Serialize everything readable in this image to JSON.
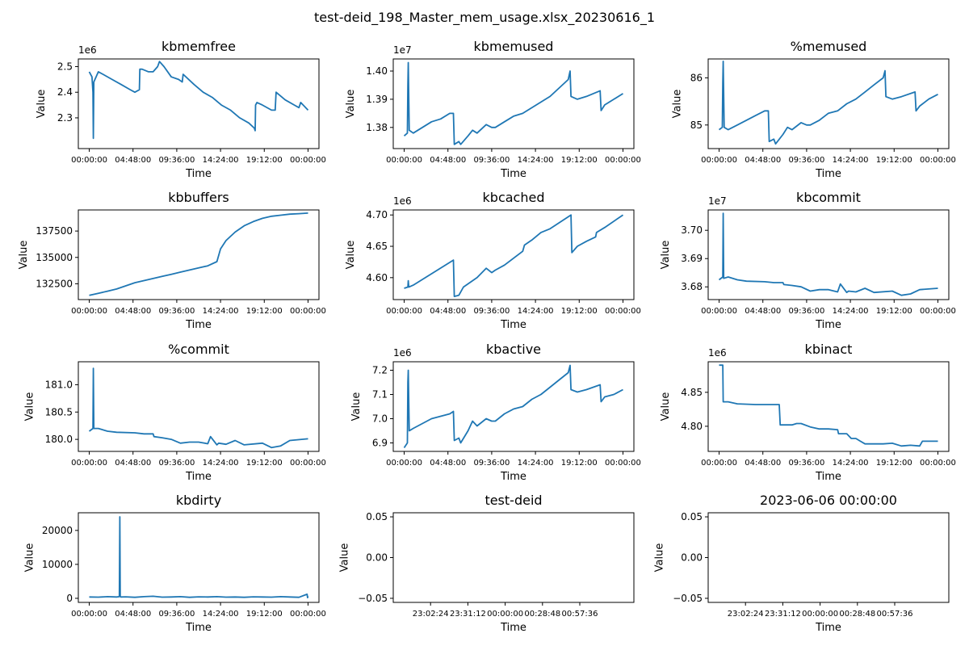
{
  "figure_title": "test-deid_198_Master_mem_usage.xlsx_20230616_1",
  "colors": {
    "line": "#1f77b4",
    "axis": "#000000",
    "background": "#ffffff"
  },
  "chart_data": [
    {
      "type": "line",
      "title": "kbmemfree",
      "xlabel": "Time",
      "ylabel": "Value",
      "offset_text": "1e6",
      "ylim": [
        2.18,
        2.53
      ],
      "yticks": [
        2.3,
        2.4,
        2.5
      ],
      "ytick_labels": [
        "2.3",
        "2.4",
        "2.5"
      ],
      "xticks": [
        0,
        4.8,
        9.6,
        14.4,
        19.2,
        24
      ],
      "xtick_labels": [
        "00:00:00",
        "04:48:00",
        "09:36:00",
        "14:24:00",
        "19:12:00",
        "00:00:00"
      ],
      "xlim": [
        -1.2,
        25.2
      ],
      "x": [
        0,
        0.3,
        0.4,
        0.45,
        0.5,
        1,
        1.5,
        2.5,
        3.5,
        4.5,
        5,
        5.5,
        5.55,
        5.8,
        6.5,
        7,
        7.5,
        7.7,
        8.2,
        9,
        9.8,
        10.2,
        10.3,
        11.5,
        12.5,
        13.5,
        14.5,
        15.5,
        16.5,
        17.5,
        18.1,
        18.2,
        18.25,
        18.4,
        19,
        20,
        20.4,
        20.5,
        21.5,
        22.5,
        23,
        23.2,
        24
      ],
      "y": [
        2.48,
        2.46,
        2.4,
        2.22,
        2.44,
        2.48,
        2.47,
        2.45,
        2.43,
        2.41,
        2.4,
        2.41,
        2.49,
        2.49,
        2.48,
        2.48,
        2.5,
        2.52,
        2.5,
        2.46,
        2.45,
        2.44,
        2.47,
        2.43,
        2.4,
        2.38,
        2.35,
        2.33,
        2.3,
        2.28,
        2.26,
        2.25,
        2.35,
        2.36,
        2.35,
        2.33,
        2.33,
        2.4,
        2.37,
        2.35,
        2.34,
        2.36,
        2.33
      ]
    },
    {
      "type": "line",
      "title": "kbmemused",
      "xlabel": "Time",
      "ylabel": "Value",
      "offset_text": "1e7",
      "ylim": [
        1.3725,
        1.4043
      ],
      "yticks": [
        1.38,
        1.39,
        1.4
      ],
      "ytick_labels": [
        "1.38",
        "1.39",
        "1.40"
      ],
      "xticks": [
        0,
        4.8,
        9.6,
        14.4,
        19.2,
        24
      ],
      "xtick_labels": [
        "00:00:00",
        "04:48:00",
        "09:36:00",
        "14:24:00",
        "19:12:00",
        "00:00:00"
      ],
      "xlim": [
        -1.2,
        25.2
      ],
      "x": [
        0,
        0.35,
        0.4,
        0.45,
        0.55,
        1,
        2,
        3,
        4,
        5,
        5.4,
        5.5,
        6,
        6.2,
        7,
        7.5,
        8,
        9,
        9.6,
        10,
        11,
        12,
        13,
        14,
        15,
        16,
        17,
        18,
        18.2,
        18.3,
        19,
        20,
        21.5,
        21.6,
        22,
        23,
        24
      ],
      "y": [
        1.377,
        1.378,
        1.395,
        1.403,
        1.379,
        1.378,
        1.38,
        1.382,
        1.383,
        1.385,
        1.385,
        1.374,
        1.375,
        1.374,
        1.377,
        1.379,
        1.378,
        1.381,
        1.38,
        1.38,
        1.382,
        1.384,
        1.385,
        1.387,
        1.389,
        1.391,
        1.394,
        1.397,
        1.4,
        1.391,
        1.39,
        1.391,
        1.393,
        1.386,
        1.388,
        1.39,
        1.392
      ]
    },
    {
      "type": "line",
      "title": "%memused",
      "xlabel": "Time",
      "ylabel": "Value",
      "offset_text": "",
      "ylim": [
        84.5,
        86.4
      ],
      "yticks": [
        85,
        86
      ],
      "ytick_labels": [
        "85",
        "86"
      ],
      "xticks": [
        0,
        4.8,
        9.6,
        14.4,
        19.2,
        24
      ],
      "xtick_labels": [
        "00:00:00",
        "04:48:00",
        "09:36:00",
        "14:24:00",
        "19:12:00",
        "00:00:00"
      ],
      "xlim": [
        -1.2,
        25.2
      ],
      "x": [
        0,
        0.35,
        0.4,
        0.45,
        0.55,
        1,
        2,
        3,
        4,
        5,
        5.4,
        5.5,
        6,
        6.2,
        7,
        7.5,
        8,
        9,
        9.6,
        10,
        11,
        12,
        13,
        14,
        15,
        16,
        17,
        18,
        18.2,
        18.3,
        19,
        20,
        21.5,
        21.6,
        22,
        23,
        24
      ],
      "y": [
        84.9,
        84.95,
        85.9,
        86.35,
        84.95,
        84.9,
        85.0,
        85.1,
        85.2,
        85.3,
        85.3,
        84.65,
        84.7,
        84.6,
        84.8,
        84.95,
        84.9,
        85.05,
        85.0,
        85.0,
        85.1,
        85.25,
        85.3,
        85.45,
        85.55,
        85.7,
        85.85,
        86.0,
        86.15,
        85.6,
        85.55,
        85.6,
        85.7,
        85.3,
        85.4,
        85.55,
        85.65
      ]
    },
    {
      "type": "line",
      "title": "kbbuffers",
      "xlabel": "Time",
      "ylabel": "Value",
      "offset_text": "",
      "ylim": [
        131000,
        139500
      ],
      "yticks": [
        132500,
        135000,
        137500
      ],
      "ytick_labels": [
        "132500",
        "135000",
        "137500"
      ],
      "xticks": [
        0,
        4.8,
        9.6,
        14.4,
        19.2,
        24
      ],
      "xtick_labels": [
        "00:00:00",
        "04:48:00",
        "09:36:00",
        "14:24:00",
        "19:12:00",
        "00:00:00"
      ],
      "xlim": [
        -1.2,
        25.2
      ],
      "x": [
        0,
        1,
        2,
        3,
        4,
        5,
        6,
        7,
        8,
        9,
        10,
        11,
        12,
        13,
        14,
        14.4,
        15,
        16,
        17,
        18,
        19,
        20,
        21,
        22,
        23,
        24
      ],
      "y": [
        131400,
        131600,
        131800,
        132000,
        132300,
        132600,
        132800,
        133000,
        133200,
        133400,
        133600,
        133800,
        134000,
        134200,
        134600,
        135800,
        136600,
        137400,
        138000,
        138400,
        138700,
        138900,
        139000,
        139100,
        139150,
        139200
      ]
    },
    {
      "type": "line",
      "title": "kbcached",
      "xlabel": "Time",
      "ylabel": "Value",
      "offset_text": "1e6",
      "ylim": [
        4.565,
        4.708
      ],
      "yticks": [
        4.6,
        4.65,
        4.7
      ],
      "ytick_labels": [
        "4.60",
        "4.65",
        "4.70"
      ],
      "xticks": [
        0,
        4.8,
        9.6,
        14.4,
        19.2,
        24
      ],
      "xtick_labels": [
        "00:00:00",
        "04:48:00",
        "09:36:00",
        "14:24:00",
        "19:12:00",
        "00:00:00"
      ],
      "xlim": [
        -1.2,
        25.2
      ],
      "x": [
        0,
        0.4,
        0.45,
        0.5,
        1,
        5.4,
        5.5,
        6,
        6.5,
        8,
        9,
        9.6,
        10,
        11,
        13,
        13.2,
        14,
        15,
        16,
        18.3,
        18.4,
        19,
        20,
        21,
        21.1,
        22,
        24
      ],
      "y": [
        4.583,
        4.585,
        4.595,
        4.585,
        4.588,
        4.628,
        4.57,
        4.572,
        4.585,
        4.6,
        4.615,
        4.608,
        4.612,
        4.62,
        4.642,
        4.652,
        4.66,
        4.672,
        4.678,
        4.7,
        4.64,
        4.65,
        4.658,
        4.665,
        4.672,
        4.68,
        4.7
      ]
    },
    {
      "type": "line",
      "title": "kbcommit",
      "xlabel": "Time",
      "ylabel": "Value",
      "offset_text": "1e7",
      "ylim": [
        3.6755,
        3.7072
      ],
      "yticks": [
        3.68,
        3.69,
        3.7
      ],
      "ytick_labels": [
        "3.68",
        "3.69",
        "3.70"
      ],
      "xticks": [
        0,
        4.8,
        9.6,
        14.4,
        19.2,
        24
      ],
      "xtick_labels": [
        "00:00:00",
        "04:48:00",
        "09:36:00",
        "14:24:00",
        "19:12:00",
        "00:00:00"
      ],
      "xlim": [
        -1.2,
        25.2
      ],
      "x": [
        0,
        0.4,
        0.45,
        0.5,
        1,
        2,
        3,
        5,
        6,
        7,
        7.1,
        8,
        9,
        10,
        11,
        12,
        13,
        13.3,
        14,
        14.2,
        15,
        16,
        17,
        19,
        20,
        21,
        22,
        24
      ],
      "y": [
        3.6825,
        3.6835,
        3.706,
        3.683,
        3.6835,
        3.6825,
        3.682,
        3.6818,
        3.6815,
        3.6815,
        3.6808,
        3.6805,
        3.68,
        3.6785,
        3.679,
        3.679,
        3.6782,
        3.681,
        3.678,
        3.6785,
        3.6782,
        3.6795,
        3.678,
        3.6785,
        3.677,
        3.6775,
        3.679,
        3.6795
      ]
    },
    {
      "type": "line",
      "title": "%commit",
      "xlabel": "Time",
      "ylabel": "Value",
      "offset_text": "",
      "ylim": [
        179.78,
        181.42
      ],
      "yticks": [
        180.0,
        180.5,
        181.0
      ],
      "ytick_labels": [
        "180.0",
        "180.5",
        "181.0"
      ],
      "xticks": [
        0,
        4.8,
        9.6,
        14.4,
        19.2,
        24
      ],
      "xtick_labels": [
        "00:00:00",
        "04:48:00",
        "09:36:00",
        "14:24:00",
        "19:12:00",
        "00:00:00"
      ],
      "xlim": [
        -1.2,
        25.2
      ],
      "x": [
        0,
        0.4,
        0.45,
        0.5,
        1,
        2,
        3,
        5,
        6,
        7,
        7.1,
        8,
        9,
        10,
        11,
        12,
        13,
        13.3,
        14,
        14.2,
        15,
        16,
        17,
        19,
        20,
        21,
        22,
        24
      ],
      "y": [
        180.15,
        180.2,
        181.3,
        180.2,
        180.2,
        180.15,
        180.13,
        180.12,
        180.1,
        180.1,
        180.05,
        180.03,
        180.0,
        179.93,
        179.95,
        179.95,
        179.92,
        180.05,
        179.9,
        179.93,
        179.91,
        179.98,
        179.9,
        179.93,
        179.85,
        179.88,
        179.98,
        180.01
      ]
    },
    {
      "type": "line",
      "title": "kbactive",
      "xlabel": "Time",
      "ylabel": "Value",
      "offset_text": "1e6",
      "ylim": [
        6.865,
        7.235
      ],
      "yticks": [
        6.9,
        7.0,
        7.1,
        7.2
      ],
      "ytick_labels": [
        "6.9",
        "7.0",
        "7.1",
        "7.2"
      ],
      "xticks": [
        0,
        4.8,
        9.6,
        14.4,
        19.2,
        24
      ],
      "xtick_labels": [
        "00:00:00",
        "04:48:00",
        "09:36:00",
        "14:24:00",
        "19:12:00",
        "00:00:00"
      ],
      "xlim": [
        -1.2,
        25.2
      ],
      "x": [
        0,
        0.35,
        0.4,
        0.45,
        0.55,
        1,
        2,
        3,
        4,
        5,
        5.4,
        5.5,
        6,
        6.2,
        7,
        7.5,
        8,
        9,
        9.6,
        10,
        11,
        12,
        13,
        14,
        15,
        16,
        17,
        18,
        18.2,
        18.3,
        19,
        20,
        21.5,
        21.6,
        22,
        23,
        24
      ],
      "y": [
        6.88,
        6.9,
        7.15,
        7.2,
        6.95,
        6.96,
        6.98,
        7.0,
        7.01,
        7.02,
        7.03,
        6.91,
        6.92,
        6.9,
        6.95,
        6.99,
        6.97,
        7.0,
        6.99,
        6.99,
        7.02,
        7.04,
        7.05,
        7.08,
        7.1,
        7.13,
        7.16,
        7.19,
        7.22,
        7.12,
        7.11,
        7.12,
        7.14,
        7.07,
        7.09,
        7.1,
        7.12
      ]
    },
    {
      "type": "line",
      "title": "kbinact",
      "xlabel": "Time",
      "ylabel": "Value",
      "offset_text": "1e6",
      "ylim": [
        4.763,
        4.895
      ],
      "yticks": [
        4.8,
        4.85
      ],
      "ytick_labels": [
        "4.80",
        "4.85"
      ],
      "xticks": [
        0,
        4.8,
        9.6,
        14.4,
        19.2,
        24
      ],
      "xtick_labels": [
        "00:00:00",
        "04:48:00",
        "09:36:00",
        "14:24:00",
        "19:12:00",
        "00:00:00"
      ],
      "xlim": [
        -1.2,
        25.2
      ],
      "x": [
        0,
        0.4,
        0.45,
        1,
        2,
        4,
        6,
        6.6,
        6.7,
        8,
        8.5,
        9,
        10,
        11,
        12,
        13,
        13.1,
        14,
        14.5,
        15,
        15.5,
        16,
        18,
        19,
        20,
        21,
        22,
        22.3,
        24
      ],
      "y": [
        4.89,
        4.89,
        4.836,
        4.836,
        4.833,
        4.832,
        4.832,
        4.832,
        4.802,
        4.802,
        4.804,
        4.804,
        4.799,
        4.796,
        4.796,
        4.795,
        4.789,
        4.789,
        4.782,
        4.782,
        4.778,
        4.774,
        4.774,
        4.775,
        4.771,
        4.772,
        4.771,
        4.778,
        4.778
      ]
    },
    {
      "type": "line",
      "title": "kbdirty",
      "xlabel": "Time",
      "ylabel": "Value",
      "offset_text": "",
      "ylim": [
        -1200,
        25200
      ],
      "yticks": [
        0,
        10000,
        20000
      ],
      "ytick_labels": [
        "0",
        "10000",
        "20000"
      ],
      "xticks": [
        0,
        4.8,
        9.6,
        14.4,
        19.2,
        24
      ],
      "xtick_labels": [
        "00:00:00",
        "04:48:00",
        "09:36:00",
        "14:24:00",
        "19:12:00",
        "00:00:00"
      ],
      "xlim": [
        -1.2,
        25.2
      ],
      "x": [
        0,
        1,
        2,
        3,
        3.3,
        3.35,
        3.4,
        3.45,
        4,
        5,
        6,
        7,
        8,
        9,
        10,
        11,
        12,
        13,
        14,
        15,
        16,
        17,
        18,
        19,
        20,
        21,
        22,
        23,
        23.9,
        23.95,
        24
      ],
      "y": [
        400,
        350,
        500,
        400,
        500,
        24000,
        600,
        400,
        450,
        300,
        500,
        600,
        350,
        400,
        500,
        300,
        450,
        400,
        500,
        350,
        400,
        300,
        450,
        400,
        350,
        500,
        400,
        300,
        1200,
        200,
        600
      ]
    },
    {
      "type": "line",
      "title": "test-deid",
      "xlabel": "Time",
      "ylabel": "Value",
      "offset_text": "",
      "ylim": [
        -0.055,
        0.055
      ],
      "yticks": [
        -0.05,
        0.0,
        0.05
      ],
      "ytick_labels": [
        "−0.05",
        "0.00",
        "0.05"
      ],
      "xticks": [
        1,
        2,
        3,
        4,
        5
      ],
      "xtick_labels": [
        "23:02:24",
        "23:31:12",
        "00:00:00",
        "00:28:48",
        "00:57:36"
      ],
      "xlim": [
        0,
        6.45
      ],
      "x": [],
      "y": []
    },
    {
      "type": "line",
      "title": "2023-06-06 00:00:00",
      "xlabel": "Time",
      "ylabel": "Value",
      "offset_text": "",
      "ylim": [
        -0.055,
        0.055
      ],
      "yticks": [
        -0.05,
        0.0,
        0.05
      ],
      "ytick_labels": [
        "−0.05",
        "0.00",
        "0.05"
      ],
      "xticks": [
        1,
        2,
        3,
        4,
        5
      ],
      "xtick_labels": [
        "23:02:24",
        "23:31:12",
        "00:00:00",
        "00:28:48",
        "00:57:36"
      ],
      "xlim": [
        0,
        6.45
      ],
      "x": [],
      "y": []
    }
  ]
}
